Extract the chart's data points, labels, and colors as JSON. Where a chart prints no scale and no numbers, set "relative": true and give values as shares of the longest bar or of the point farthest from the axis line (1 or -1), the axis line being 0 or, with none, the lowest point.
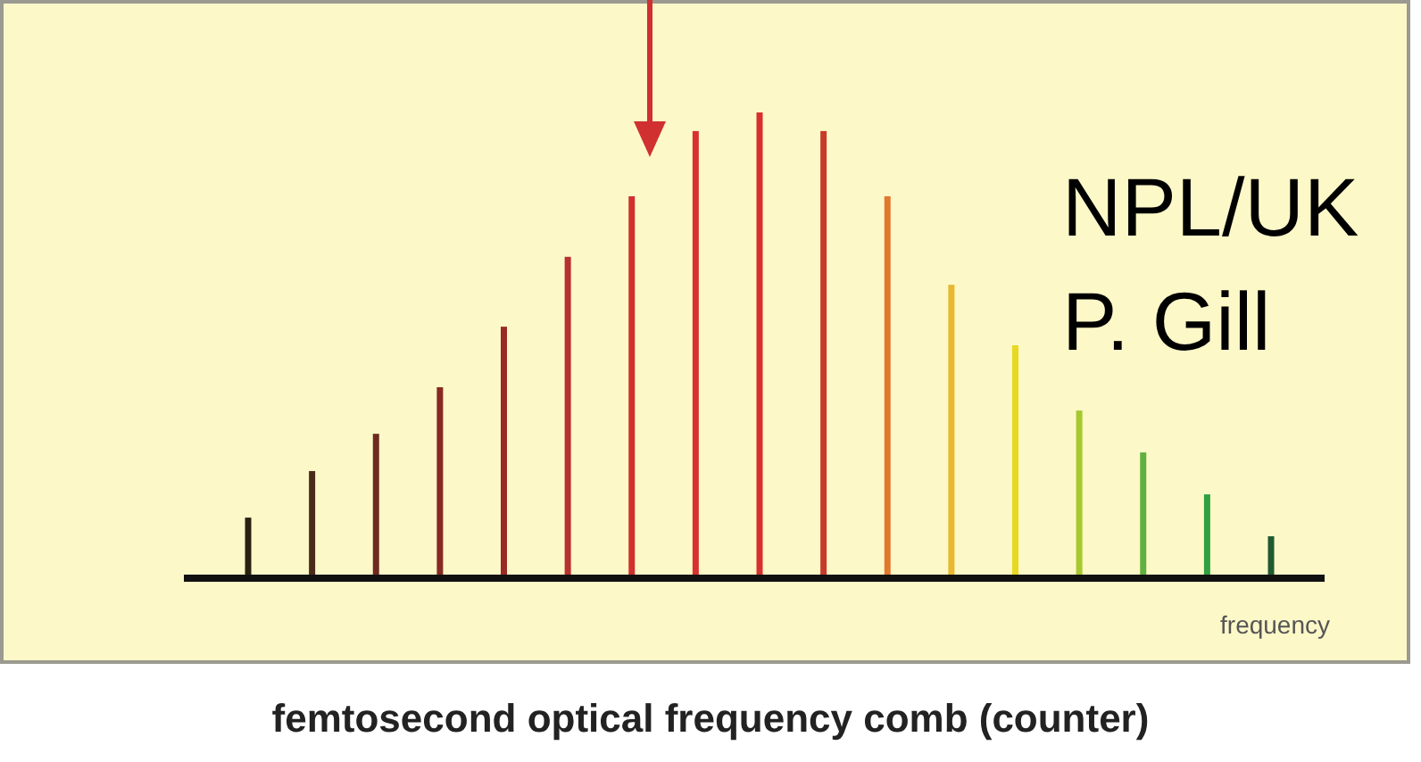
{
  "chart_data": {
    "type": "bar",
    "relative": true,
    "title": "femtosecond optical frequency comb (counter)",
    "xlabel": "frequency",
    "categories": [
      null,
      null,
      null,
      null,
      null,
      null,
      null,
      null,
      null,
      null,
      null,
      null,
      null,
      null,
      null,
      null,
      null
    ],
    "values": [
      0.13,
      0.23,
      0.31,
      0.41,
      0.54,
      0.69,
      0.82,
      0.96,
      1,
      0.96,
      0.82,
      0.63,
      0.5,
      0.36,
      0.27,
      0.18,
      0.09
    ],
    "colors": [
      "#2b2010",
      "#4a2a18",
      "#6e2a20",
      "#862a22",
      "#9a2a25",
      "#b83030",
      "#d03030",
      "#d83030",
      "#d83030",
      "#c83a2a",
      "#e07830",
      "#e8b830",
      "#e8d820",
      "#a8c830",
      "#60b040",
      "#30a040",
      "#205a30"
    ],
    "annotations": [
      "NPL/UK",
      "P. Gill"
    ]
  }
}
